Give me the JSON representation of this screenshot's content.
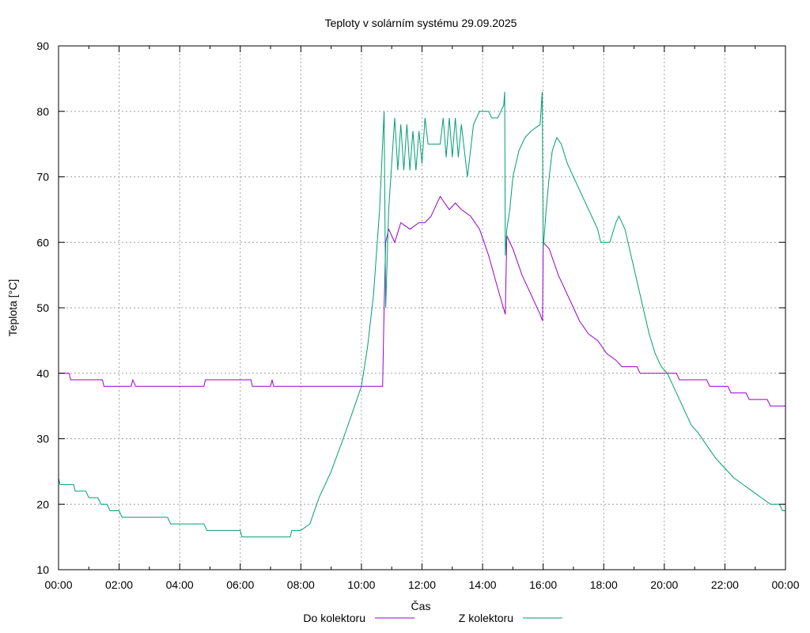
{
  "chart_data": {
    "type": "line",
    "title": "Teploty v solárním systému 29.09.2025",
    "xlabel": "Čas",
    "ylabel": "Teplota [°C]",
    "xlim": [
      0,
      24
    ],
    "ylim": [
      10,
      90
    ],
    "x_ticks": [
      0,
      2,
      4,
      6,
      8,
      10,
      12,
      14,
      16,
      18,
      20,
      22,
      24
    ],
    "x_tick_labels": [
      "00:00",
      "02:00",
      "04:00",
      "06:00",
      "08:00",
      "10:00",
      "12:00",
      "14:00",
      "16:00",
      "18:00",
      "20:00",
      "22:00",
      "00:00"
    ],
    "y_ticks": [
      10,
      20,
      30,
      40,
      50,
      60,
      70,
      80,
      90
    ],
    "y_tick_labels": [
      "10",
      "20",
      "30",
      "40",
      "50",
      "60",
      "70",
      "80",
      "90"
    ],
    "grid": true,
    "legend_position": "bottom",
    "series": [
      {
        "name": "Do kolektoru",
        "color": "#9400d3",
        "points": [
          [
            0,
            40
          ],
          [
            0.35,
            40
          ],
          [
            0.4,
            39
          ],
          [
            1.45,
            39
          ],
          [
            1.5,
            38
          ],
          [
            2.4,
            38
          ],
          [
            2.45,
            39
          ],
          [
            2.55,
            38
          ],
          [
            4.8,
            38
          ],
          [
            4.85,
            39
          ],
          [
            6.35,
            39
          ],
          [
            6.4,
            38
          ],
          [
            7.0,
            38
          ],
          [
            7.05,
            39
          ],
          [
            7.1,
            38
          ],
          [
            10.7,
            38
          ],
          [
            10.75,
            50
          ],
          [
            10.8,
            60
          ],
          [
            10.9,
            62
          ],
          [
            11.1,
            60
          ],
          [
            11.3,
            63
          ],
          [
            11.6,
            62
          ],
          [
            11.9,
            63
          ],
          [
            12.1,
            63
          ],
          [
            12.3,
            64
          ],
          [
            12.5,
            66
          ],
          [
            12.6,
            67
          ],
          [
            12.75,
            66
          ],
          [
            12.9,
            65
          ],
          [
            13.1,
            66
          ],
          [
            13.3,
            65
          ],
          [
            13.6,
            64
          ],
          [
            13.9,
            62
          ],
          [
            14.2,
            58
          ],
          [
            14.5,
            53
          ],
          [
            14.75,
            49
          ],
          [
            14.8,
            61
          ],
          [
            15.0,
            59
          ],
          [
            15.3,
            55
          ],
          [
            15.6,
            52
          ],
          [
            15.9,
            49
          ],
          [
            15.98,
            48
          ],
          [
            16.0,
            60
          ],
          [
            16.2,
            59
          ],
          [
            16.5,
            55
          ],
          [
            16.8,
            52
          ],
          [
            17.0,
            50
          ],
          [
            17.2,
            48
          ],
          [
            17.5,
            46
          ],
          [
            17.8,
            45
          ],
          [
            18.1,
            43
          ],
          [
            18.4,
            42
          ],
          [
            18.6,
            41
          ],
          [
            19.1,
            41
          ],
          [
            19.2,
            40
          ],
          [
            20.4,
            40
          ],
          [
            20.5,
            39
          ],
          [
            21.4,
            39
          ],
          [
            21.5,
            38
          ],
          [
            22.1,
            38
          ],
          [
            22.2,
            37
          ],
          [
            22.7,
            37
          ],
          [
            22.8,
            36
          ],
          [
            23.4,
            36
          ],
          [
            23.5,
            35
          ],
          [
            24,
            35
          ]
        ]
      },
      {
        "name": "Z kolektoru",
        "color": "#009e73",
        "points": [
          [
            0,
            24
          ],
          [
            0.05,
            23
          ],
          [
            0.5,
            23
          ],
          [
            0.55,
            22
          ],
          [
            0.9,
            22
          ],
          [
            1.0,
            21
          ],
          [
            1.3,
            21
          ],
          [
            1.4,
            20
          ],
          [
            1.6,
            20
          ],
          [
            1.7,
            19
          ],
          [
            2.0,
            19
          ],
          [
            2.1,
            18
          ],
          [
            3.6,
            18
          ],
          [
            3.7,
            17
          ],
          [
            4.8,
            17
          ],
          [
            4.9,
            16
          ],
          [
            6.0,
            16
          ],
          [
            6.05,
            15
          ],
          [
            7.65,
            15
          ],
          [
            7.7,
            16
          ],
          [
            8.0,
            16
          ],
          [
            8.3,
            17
          ],
          [
            8.6,
            21
          ],
          [
            9.0,
            25
          ],
          [
            9.4,
            30
          ],
          [
            9.7,
            34
          ],
          [
            10.0,
            38
          ],
          [
            10.2,
            44
          ],
          [
            10.4,
            52
          ],
          [
            10.6,
            65
          ],
          [
            10.7,
            75
          ],
          [
            10.75,
            80
          ],
          [
            10.8,
            50
          ],
          [
            10.9,
            65
          ],
          [
            11.0,
            72
          ],
          [
            11.1,
            79
          ],
          [
            11.2,
            71
          ],
          [
            11.3,
            78
          ],
          [
            11.4,
            71
          ],
          [
            11.5,
            78
          ],
          [
            11.6,
            71
          ],
          [
            11.7,
            77
          ],
          [
            11.8,
            71
          ],
          [
            11.9,
            77
          ],
          [
            12.0,
            72
          ],
          [
            12.1,
            79
          ],
          [
            12.2,
            75
          ],
          [
            12.6,
            75
          ],
          [
            12.7,
            79
          ],
          [
            12.8,
            73
          ],
          [
            12.9,
            79
          ],
          [
            13.0,
            73
          ],
          [
            13.1,
            79
          ],
          [
            13.2,
            73
          ],
          [
            13.3,
            78
          ],
          [
            13.4,
            74
          ],
          [
            13.5,
            70
          ],
          [
            13.6,
            74
          ],
          [
            13.7,
            78
          ],
          [
            13.8,
            79
          ],
          [
            13.9,
            80
          ],
          [
            14.2,
            80
          ],
          [
            14.3,
            79
          ],
          [
            14.5,
            79
          ],
          [
            14.6,
            80
          ],
          [
            14.7,
            81
          ],
          [
            14.73,
            83
          ],
          [
            14.75,
            58
          ],
          [
            14.8,
            62
          ],
          [
            14.9,
            65
          ],
          [
            15.0,
            70
          ],
          [
            15.2,
            74
          ],
          [
            15.4,
            76
          ],
          [
            15.6,
            77
          ],
          [
            15.9,
            78
          ],
          [
            15.97,
            83
          ],
          [
            16.0,
            59
          ],
          [
            16.1,
            65
          ],
          [
            16.2,
            70
          ],
          [
            16.3,
            74
          ],
          [
            16.45,
            76
          ],
          [
            16.6,
            75
          ],
          [
            16.8,
            72
          ],
          [
            17.0,
            70
          ],
          [
            17.3,
            67
          ],
          [
            17.6,
            64
          ],
          [
            17.8,
            62
          ],
          [
            17.9,
            60
          ],
          [
            18.2,
            60
          ],
          [
            18.4,
            63
          ],
          [
            18.5,
            64
          ],
          [
            18.7,
            62
          ],
          [
            18.9,
            58
          ],
          [
            19.1,
            54
          ],
          [
            19.3,
            50
          ],
          [
            19.5,
            46
          ],
          [
            19.7,
            43
          ],
          [
            19.9,
            41
          ],
          [
            20.1,
            40
          ],
          [
            20.3,
            38
          ],
          [
            20.5,
            36
          ],
          [
            20.7,
            34
          ],
          [
            20.9,
            32
          ],
          [
            21.1,
            31
          ],
          [
            21.4,
            29
          ],
          [
            21.7,
            27
          ],
          [
            21.9,
            26
          ],
          [
            22.1,
            25
          ],
          [
            22.3,
            24
          ],
          [
            22.6,
            23
          ],
          [
            22.9,
            22
          ],
          [
            23.2,
            21
          ],
          [
            23.5,
            20
          ],
          [
            23.8,
            20
          ],
          [
            23.9,
            19
          ],
          [
            24,
            19
          ]
        ]
      }
    ]
  }
}
